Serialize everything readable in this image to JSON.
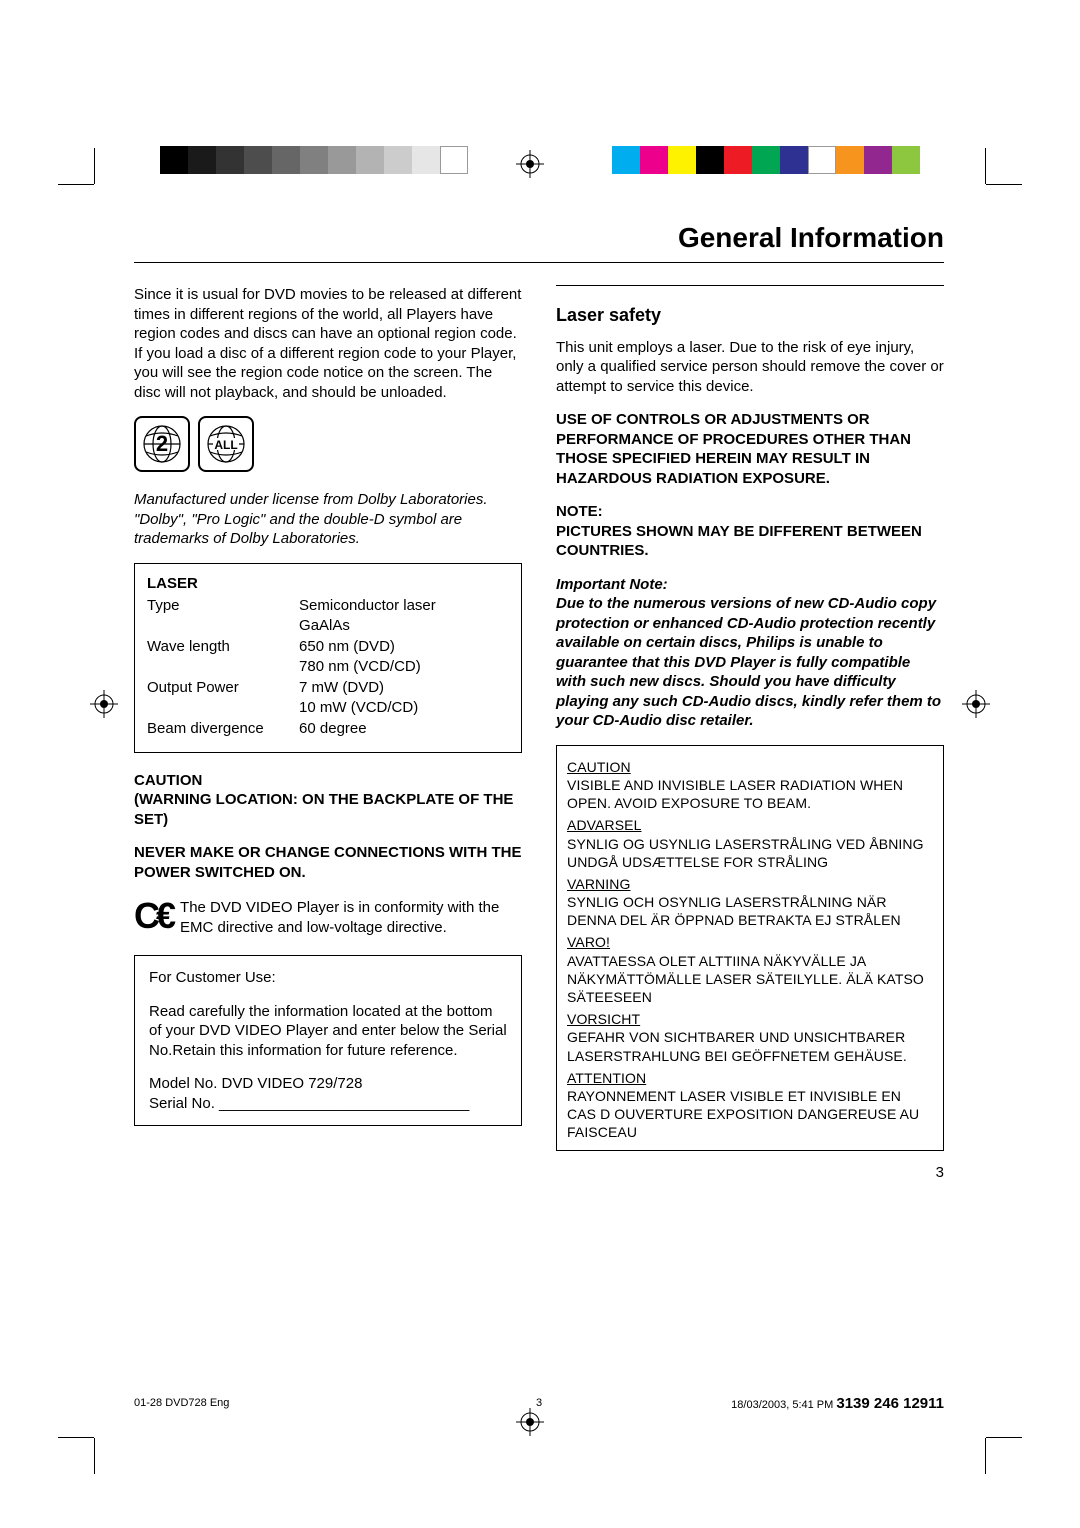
{
  "page": {
    "title": "General Information",
    "number": "3"
  },
  "print_marks": {
    "gray_swatches": [
      "#000000",
      "#1a1a1a",
      "#333333",
      "#4d4d4d",
      "#666666",
      "#808080",
      "#999999",
      "#b3b3b3",
      "#cccccc",
      "#e6e6e6",
      "#ffffff"
    ],
    "color_swatches": [
      "#00aeef",
      "#ec008c",
      "#fff200",
      "#000000",
      "#ed1c24",
      "#00a651",
      "#2e3192",
      "#ffffff",
      "#f7941d",
      "#92278f",
      "#8dc63f"
    ]
  },
  "left_col": {
    "region_para": "Since it is usual for DVD movies to be released at different times in different regions of the world, all Players have region codes and discs can have an optional region code. If you load a disc of a different region code to your Player, you will see the region code notice on the screen. The disc will not playback, and should be unloaded.",
    "region_icons": {
      "code": "2",
      "all": "ALL"
    },
    "license_note": "Manufactured under license from Dolby Laboratories. \"Dolby\", \"Pro Logic\" and the double-D symbol are trademarks of Dolby Laboratories.",
    "laser": {
      "heading": "LASER",
      "rows": [
        {
          "label": "Type",
          "val1": "Semiconductor laser",
          "val2": "GaAlAs"
        },
        {
          "label": "Wave length",
          "val1": "650 nm (DVD)",
          "val2": "780 nm (VCD/CD)"
        },
        {
          "label": "Output Power",
          "val1": "7 mW (DVD)",
          "val2": "10 mW (VCD/CD)"
        },
        {
          "label": "Beam divergence",
          "val1": "60 degree",
          "val2": ""
        }
      ]
    },
    "caution_head": "CAUTION",
    "caution_loc": "(WARNING LOCATION: ON THE BACKPLATE OF THE SET)",
    "never": "NEVER MAKE OR CHANGE CONNECTIONS WITH THE POWER SWITCHED ON.",
    "ce_text": "The DVD VIDEO Player is in conformity with the EMC directive and low-voltage directive.",
    "cust": {
      "head": "For Customer Use:",
      "body": "Read carefully the information located at the bottom of your DVD VIDEO Player and enter below the Serial No.Retain this information for future reference.",
      "model": "Model No. DVD VIDEO 729/728",
      "serial": "Serial No. ______________________________"
    }
  },
  "right_col": {
    "heading": "Laser safety",
    "intro": "This unit employs a laser. Due to the risk of eye injury, only a qualified service person should remove the cover or attempt to service this device.",
    "bold1": "USE OF CONTROLS OR ADJUSTMENTS OR PERFORMANCE OF PROCEDURES OTHER THAN THOSE SPECIFIED HEREIN MAY RESULT IN HAZARDOUS RADIATION EXPOSURE.",
    "bold2_head": "NOTE:",
    "bold2": "PICTURES SHOWN MAY BE DIFFERENT BETWEEN COUNTRIES.",
    "imp_head": "Important Note:",
    "imp_body": "Due to the numerous versions of new CD-Audio copy protection or enhanced CD-Audio protection recently available on certain discs, Philips is unable to guarantee that this DVD Player is fully compatible with such new discs. Should you have difficulty playing any such CD-Audio discs, kindly refer them to your CD-Audio disc retailer.",
    "warn": {
      "caution_h": "CAUTION",
      "caution": "VISIBLE AND INVISIBLE LASER RADIATION WHEN OPEN.\nAVOID EXPOSURE TO BEAM.",
      "advarsel_h": "ADVARSEL",
      "advarsel": "SYNLIG OG USYNLIG LASERSTRÅLING VED ÅBNING UNDGÅ UDSÆTTELSE FOR STRÅLING",
      "varning_h": "VARNING",
      "varning": "SYNLIG OCH OSYNLIG LASERSTRÅLNING NÄR DENNA DEL ÄR ÖPPNAD BETRAKTA EJ STRÅLEN",
      "varo_h": "VARO!",
      "varo": "AVATTAESSA OLET ALTTIINA NÄKYVÄLLE JA NÄKYMÄTTÖMÄLLE LASER SÄTEILYLLE. ÄLÄ KATSO SÄTEESEEN",
      "vorsicht_h": "VORSICHT",
      "vorsicht": "GEFAHR VON SICHTBARER UND UNSICHTBARER LASERSTRAHLUNG BEI GEÖFFNETEM GEHÄUSE.",
      "attention_h": "ATTENTION",
      "attention": "RAYONNEMENT LASER VISIBLE ET INVISIBLE EN CAS D OUVERTURE EXPOSITION DANGEREUSE AU FAISCEAU"
    }
  },
  "footer": {
    "left": "01-28 DVD728 Eng",
    "mid": "3",
    "date": "18/03/2003, 5:41 PM",
    "partnum": "3139 246 12911"
  }
}
